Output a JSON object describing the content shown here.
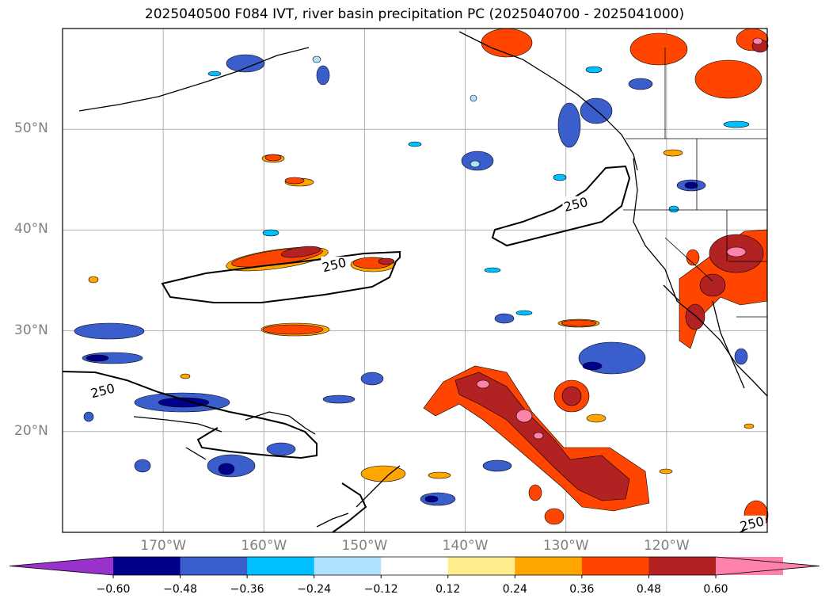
{
  "title": "2025040500 F084 IVT, river basin precipitation PC (2025040700 - 2025041000)",
  "map": {
    "projection": "PlateCarree",
    "lon_range": [
      -180,
      -110
    ],
    "lat_range": [
      10,
      60
    ],
    "lat_ticks": [
      {
        "lat": 50,
        "label": "50°N"
      },
      {
        "lat": 40,
        "label": "40°N"
      },
      {
        "lat": 30,
        "label": "30°N"
      },
      {
        "lat": 20,
        "label": "20°N"
      }
    ],
    "lon_ticks": [
      {
        "lon": -170,
        "label": "170°W"
      },
      {
        "lon": -160,
        "label": "160°W"
      },
      {
        "lon": -150,
        "label": "150°W"
      },
      {
        "lon": -140,
        "label": "140°W"
      },
      {
        "lon": -130,
        "label": "130°W"
      },
      {
        "lon": -120,
        "label": "120°W"
      }
    ],
    "gridlines": true,
    "contour_labels": [
      {
        "text": "250",
        "lon": -153,
        "lat": 36.5
      },
      {
        "text": "250",
        "lon": -129,
        "lat": 42.5
      },
      {
        "text": "250",
        "lon": -176,
        "lat": 24
      },
      {
        "text": "250",
        "lon": -111.5,
        "lat": 10.8
      }
    ]
  },
  "colorbar": {
    "extend": "both",
    "levels": [
      -0.72,
      -0.6,
      -0.48,
      -0.36,
      -0.24,
      -0.12,
      0.12,
      0.24,
      0.36,
      0.48,
      0.6,
      0.72
    ],
    "colors": [
      "#9932cc",
      "#00008b",
      "#3a5fcd",
      "#00bfff",
      "#b0e2ff",
      "#ffffff",
      "#ffec8b",
      "#ffa500",
      "#ff4500",
      "#b22222",
      "#ff82ab"
    ],
    "tick_labels": [
      "−0.60",
      "−0.48",
      "−0.36",
      "−0.24",
      "−0.12",
      "0.12",
      "0.24",
      "0.36",
      "0.48",
      "0.60"
    ]
  }
}
